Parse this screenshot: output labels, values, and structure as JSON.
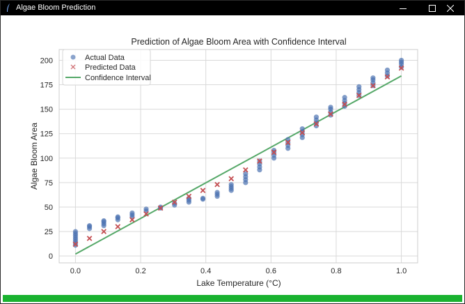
{
  "window": {
    "title": "Algae Bloom Prediction",
    "icon": "feather-icon"
  },
  "controls": {
    "minimize_icon": "minimize-icon",
    "maximize_icon": "maximize-icon",
    "close_icon": "close-icon"
  },
  "status_bar": {
    "color": "#19b22f"
  },
  "chart_data": {
    "type": "scatter",
    "title": "Prediction of Algae Bloom Area with Confidence Interval",
    "xlabel": "Lake Temperature (°C)",
    "ylabel": "Algae Bloom Area",
    "xlim": [
      -0.05,
      1.05
    ],
    "ylim": [
      -7,
      211
    ],
    "xticks": [
      0.0,
      0.2,
      0.4,
      0.6,
      0.8,
      1.0
    ],
    "xtick_labels": [
      "0.0",
      "0.2",
      "0.4",
      "0.6",
      "0.8",
      "1.0"
    ],
    "yticks": [
      0,
      25,
      50,
      75,
      100,
      125,
      150,
      175,
      200
    ],
    "ytick_labels": [
      "0",
      "25",
      "50",
      "75",
      "100",
      "125",
      "150",
      "175",
      "200"
    ],
    "grid": true,
    "legend": {
      "position": "upper-left",
      "entries": [
        "Actual Data",
        "Predicted Data",
        "Confidence Interval"
      ]
    },
    "colors": {
      "actual": "#4c72b0",
      "predicted": "#c44e52",
      "interval": "#55a868"
    },
    "series": [
      {
        "name": "Actual Data",
        "type": "scatter",
        "points": [
          {
            "x": 0.0,
            "y": 11
          },
          {
            "x": 0.0,
            "y": 13
          },
          {
            "x": 0.0,
            "y": 15
          },
          {
            "x": 0.0,
            "y": 17
          },
          {
            "x": 0.0,
            "y": 19
          },
          {
            "x": 0.0,
            "y": 21
          },
          {
            "x": 0.0,
            "y": 23
          },
          {
            "x": 0.0,
            "y": 25
          },
          {
            "x": 0.043,
            "y": 28
          },
          {
            "x": 0.043,
            "y": 30
          },
          {
            "x": 0.043,
            "y": 31
          },
          {
            "x": 0.087,
            "y": 31
          },
          {
            "x": 0.087,
            "y": 33
          },
          {
            "x": 0.087,
            "y": 35
          },
          {
            "x": 0.087,
            "y": 36
          },
          {
            "x": 0.13,
            "y": 37
          },
          {
            "x": 0.13,
            "y": 39
          },
          {
            "x": 0.13,
            "y": 40
          },
          {
            "x": 0.174,
            "y": 40
          },
          {
            "x": 0.174,
            "y": 42
          },
          {
            "x": 0.174,
            "y": 44
          },
          {
            "x": 0.217,
            "y": 46
          },
          {
            "x": 0.217,
            "y": 48
          },
          {
            "x": 0.261,
            "y": 49
          },
          {
            "x": 0.261,
            "y": 50
          },
          {
            "x": 0.304,
            "y": 52
          },
          {
            "x": 0.304,
            "y": 54
          },
          {
            "x": 0.348,
            "y": 55
          },
          {
            "x": 0.348,
            "y": 57
          },
          {
            "x": 0.348,
            "y": 59
          },
          {
            "x": 0.391,
            "y": 58
          },
          {
            "x": 0.391,
            "y": 59
          },
          {
            "x": 0.435,
            "y": 61
          },
          {
            "x": 0.435,
            "y": 63
          },
          {
            "x": 0.435,
            "y": 65
          },
          {
            "x": 0.478,
            "y": 67
          },
          {
            "x": 0.478,
            "y": 69
          },
          {
            "x": 0.478,
            "y": 71
          },
          {
            "x": 0.478,
            "y": 73
          },
          {
            "x": 0.522,
            "y": 75
          },
          {
            "x": 0.522,
            "y": 78
          },
          {
            "x": 0.522,
            "y": 81
          },
          {
            "x": 0.522,
            "y": 84
          },
          {
            "x": 0.565,
            "y": 88
          },
          {
            "x": 0.565,
            "y": 91
          },
          {
            "x": 0.565,
            "y": 94
          },
          {
            "x": 0.565,
            "y": 97
          },
          {
            "x": 0.609,
            "y": 100
          },
          {
            "x": 0.609,
            "y": 103
          },
          {
            "x": 0.609,
            "y": 106
          },
          {
            "x": 0.609,
            "y": 108
          },
          {
            "x": 0.652,
            "y": 110
          },
          {
            "x": 0.652,
            "y": 113
          },
          {
            "x": 0.652,
            "y": 116
          },
          {
            "x": 0.652,
            "y": 119
          },
          {
            "x": 0.696,
            "y": 121
          },
          {
            "x": 0.696,
            "y": 124
          },
          {
            "x": 0.696,
            "y": 127
          },
          {
            "x": 0.696,
            "y": 130
          },
          {
            "x": 0.739,
            "y": 133
          },
          {
            "x": 0.739,
            "y": 136
          },
          {
            "x": 0.739,
            "y": 139
          },
          {
            "x": 0.739,
            "y": 142
          },
          {
            "x": 0.783,
            "y": 144
          },
          {
            "x": 0.783,
            "y": 147
          },
          {
            "x": 0.783,
            "y": 150
          },
          {
            "x": 0.783,
            "y": 152
          },
          {
            "x": 0.826,
            "y": 153
          },
          {
            "x": 0.826,
            "y": 156
          },
          {
            "x": 0.826,
            "y": 159
          },
          {
            "x": 0.826,
            "y": 162
          },
          {
            "x": 0.87,
            "y": 164
          },
          {
            "x": 0.87,
            "y": 167
          },
          {
            "x": 0.87,
            "y": 170
          },
          {
            "x": 0.87,
            "y": 173
          },
          {
            "x": 0.913,
            "y": 174
          },
          {
            "x": 0.913,
            "y": 177
          },
          {
            "x": 0.913,
            "y": 180
          },
          {
            "x": 0.913,
            "y": 182
          },
          {
            "x": 0.957,
            "y": 184
          },
          {
            "x": 0.957,
            "y": 187
          },
          {
            "x": 0.957,
            "y": 190
          },
          {
            "x": 1.0,
            "y": 193
          },
          {
            "x": 1.0,
            "y": 196
          },
          {
            "x": 1.0,
            "y": 198
          },
          {
            "x": 1.0,
            "y": 200
          }
        ]
      },
      {
        "name": "Predicted Data",
        "type": "scatter-x",
        "points": [
          {
            "x": 0.0,
            "y": 12
          },
          {
            "x": 0.043,
            "y": 18
          },
          {
            "x": 0.087,
            "y": 25
          },
          {
            "x": 0.13,
            "y": 30
          },
          {
            "x": 0.174,
            "y": 37
          },
          {
            "x": 0.217,
            "y": 43
          },
          {
            "x": 0.261,
            "y": 49
          },
          {
            "x": 0.304,
            "y": 55
          },
          {
            "x": 0.348,
            "y": 61
          },
          {
            "x": 0.391,
            "y": 67
          },
          {
            "x": 0.435,
            "y": 73
          },
          {
            "x": 0.478,
            "y": 79
          },
          {
            "x": 0.522,
            "y": 88
          },
          {
            "x": 0.565,
            "y": 97
          },
          {
            "x": 0.609,
            "y": 106
          },
          {
            "x": 0.652,
            "y": 116
          },
          {
            "x": 0.696,
            "y": 126
          },
          {
            "x": 0.739,
            "y": 135
          },
          {
            "x": 0.783,
            "y": 145
          },
          {
            "x": 0.826,
            "y": 155
          },
          {
            "x": 0.87,
            "y": 164
          },
          {
            "x": 0.913,
            "y": 174
          },
          {
            "x": 0.957,
            "y": 183
          },
          {
            "x": 1.0,
            "y": 192
          }
        ]
      },
      {
        "name": "Confidence Interval",
        "type": "line",
        "points": [
          {
            "x": 0.0,
            "y": 2
          },
          {
            "x": 1.0,
            "y": 184
          }
        ]
      }
    ]
  }
}
